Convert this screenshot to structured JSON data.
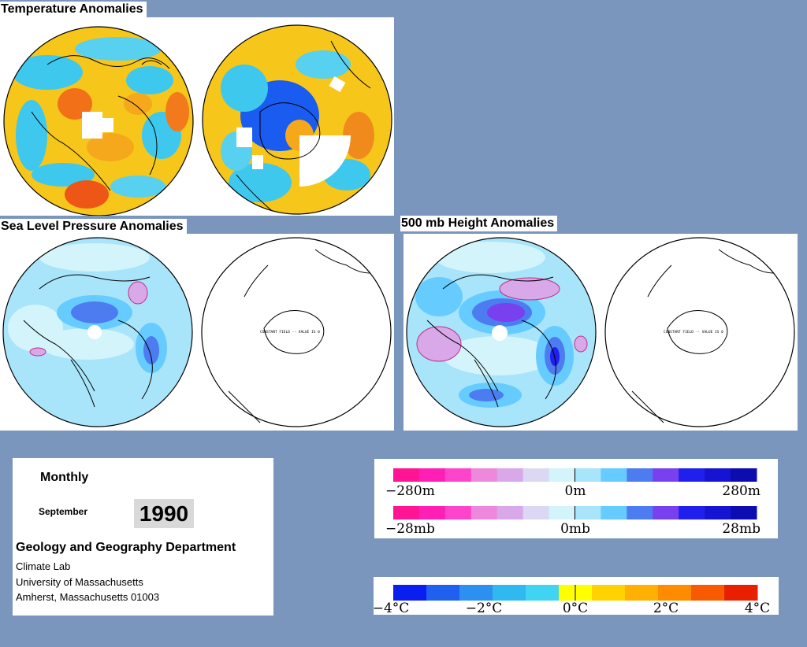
{
  "panels": {
    "temperature": {
      "title": "Temperature Anomalies"
    },
    "sea_level_pressure": {
      "title": "Sea Level Pressure Anomalies",
      "south_note": "CONSTANT FIELD -- VALUE IS 0"
    },
    "height_500mb": {
      "title": "500 mb Height Anomalies",
      "south_note": "CONSTANT FIELD -- VALUE IS 0"
    }
  },
  "info": {
    "period_label": "Monthly",
    "month": "September",
    "year": "1990",
    "department": "Geology and Geography Department",
    "lab": "Climate Lab",
    "university": "University of Massachusetts",
    "address": "Amherst, Massachusetts 01003"
  },
  "legends": {
    "height": {
      "labels": [
        "−280m",
        "0m",
        "280m"
      ]
    },
    "pressure": {
      "labels": [
        "−28mb",
        "0mb",
        "28mb"
      ]
    },
    "temperature": {
      "labels": [
        "−4°C",
        "−2°C",
        "0°C",
        "2°C",
        "4°C"
      ]
    }
  },
  "colors": {
    "background": "#7b96bd",
    "anomaly_scale": [
      "#ff1493",
      "#ff1fb4",
      "#ff44cc",
      "#ee88dd",
      "#d8a8e8",
      "#dcd8f4",
      "#d2f4fa",
      "#a8e4fa",
      "#66ccff",
      "#4c7cf0",
      "#7840ee",
      "#2020ee",
      "#1414d2",
      "#0c0cb0"
    ],
    "temperature_scale": [
      "#0a1ef0",
      "#2060f0",
      "#2c90f0",
      "#30b8f0",
      "#3ed4f2",
      "#ffff00",
      "#ffd200",
      "#ffb000",
      "#ff8c00",
      "#f85a00",
      "#e82000"
    ]
  }
}
